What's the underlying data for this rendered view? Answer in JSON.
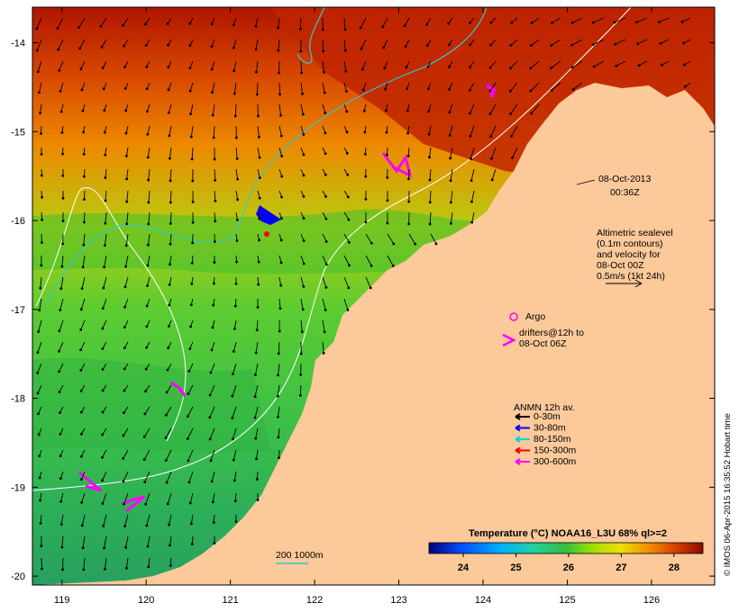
{
  "map": {
    "x_ticks": [
      "119",
      "120",
      "121",
      "122",
      "123",
      "124",
      "125",
      "126"
    ],
    "y_ticks": [
      "-14",
      "-15",
      "-16",
      "-17",
      "-18",
      "-19",
      "-20"
    ],
    "lon_range": [
      118.65,
      126.75
    ],
    "lat_range": [
      -20.1,
      -13.6
    ]
  },
  "annotations": {
    "date_line1": "08-Oct-2013",
    "date_line2": "00:36Z",
    "altimetry_line1": "Altimetric sealevel",
    "altimetry_line2": "(0.1m contours)",
    "altimetry_line3": "and velocity for",
    "altimetry_line4": "08-Oct 00Z",
    "altimetry_line5": "0.5m/s (1kt 24h)",
    "argo_label": "Argo",
    "drifters_line1": "drifters@12h to",
    "drifters_line2": "08-Oct 06Z",
    "scale_label": "200 1000m"
  },
  "legend": {
    "title": "ANMN 12h av.",
    "items": [
      {
        "label": "0-30m",
        "color": "#000000"
      },
      {
        "label": "30-80m",
        "color": "#0000ff"
      },
      {
        "label": "80-150m",
        "color": "#00d8d8"
      },
      {
        "label": "150-300m",
        "color": "#ff0000"
      },
      {
        "label": "300-600m",
        "color": "#ff00ff"
      }
    ]
  },
  "colorbar": {
    "title": "Temperature (°C) NOAA16_L3U 68% ql>=2",
    "ticks": [
      "24",
      "25",
      "26",
      "27",
      "28"
    ],
    "range": [
      23.35,
      28.55
    ]
  },
  "credit": "© IMOS 06-Apr-2015 16:35:52 Hobart time",
  "colors": {
    "land": "#fbc99a",
    "warm": "#a81000",
    "mid": "#f0a000",
    "cool": "#30c040",
    "magenta": "#ff00ff",
    "cyan": "#33c9c9"
  }
}
